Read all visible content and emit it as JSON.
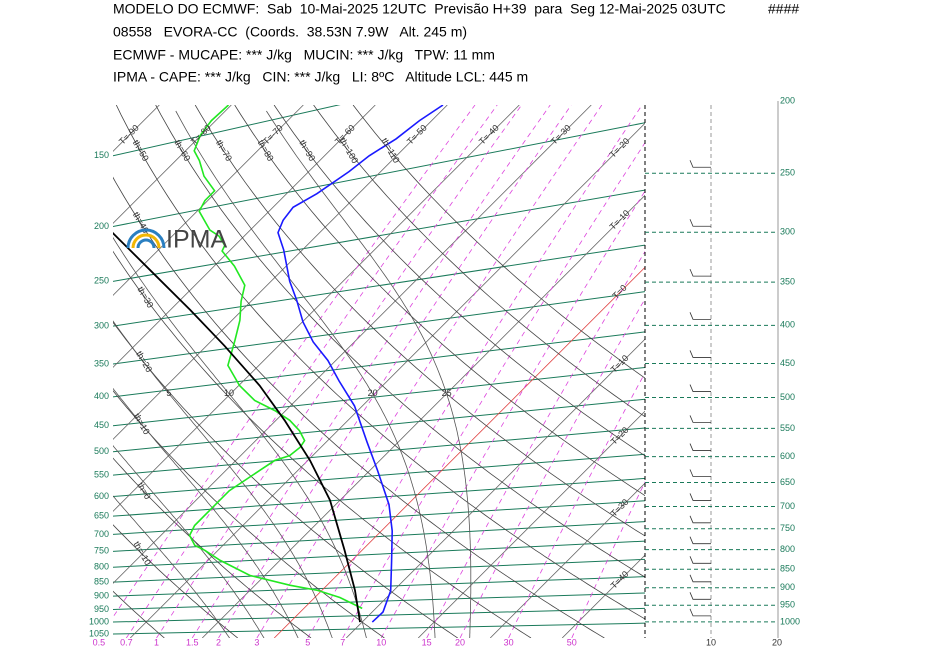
{
  "chart_data": {
    "type": "skew-t",
    "header": [
      "MODELO DO ECMWF:  Sab  10-Mai-2025 12UTC  Previsão H+39  para  Seg 12-Mai-2025 03UTC",
      "08558   EVORA-CC  (Coords.  38.53N 7.9W   Alt. 245 m)",
      "ECMWF - MUCAPE: *** J/kg   MUCIN: *** J/kg   TPW: 11 mm",
      "IPMA - CAPE: *** J/kg   CIN: *** J/kg   LI: 8ºC   Altitude LCL: 445 m"
    ],
    "header_mark": "####",
    "logo": "IPMA",
    "ylim": [
      1067,
      122
    ],
    "yticks": [
      150,
      200,
      250,
      300,
      350,
      400,
      450,
      500,
      550,
      600,
      650,
      700,
      750,
      800,
      850,
      900,
      950,
      1000,
      1050
    ],
    "y2lim": [
      1051,
      200
    ],
    "y2ticks": [
      200,
      250,
      300,
      350,
      400,
      450,
      500,
      550,
      600,
      650,
      700,
      750,
      800,
      850,
      900,
      950,
      1000
    ],
    "xlim": [
      -22.4,
      51.5
    ],
    "mixing_ratio_ticks": [
      0.5,
      0.7,
      1,
      1.5,
      2,
      3,
      5,
      7,
      10,
      15,
      20,
      30,
      50
    ],
    "isotherm_ticks": [
      {
        "value": -90,
        "label": "T=-90"
      },
      {
        "value": -80,
        "label": "T=-80"
      },
      {
        "value": -70,
        "label": "T=-70"
      },
      {
        "value": -60,
        "label": "T=-60"
      },
      {
        "value": -50,
        "label": "T=-50"
      },
      {
        "value": -40,
        "label": "T=-40"
      },
      {
        "value": -30,
        "label": "T=-30"
      },
      {
        "value": -20,
        "label": "T=-20"
      },
      {
        "value": -10,
        "label": "T=-10"
      },
      {
        "value": 0,
        "label": "T=0"
      },
      {
        "value": 10,
        "label": "T=10"
      },
      {
        "value": 20,
        "label": "T=20"
      },
      {
        "value": 30,
        "label": "T=30"
      },
      {
        "value": 40,
        "label": "T=40"
      }
    ],
    "dry_adiabat_ticks": [
      {
        "value": -20,
        "label": "th=-20"
      },
      {
        "value": -10,
        "label": "th=-10"
      },
      {
        "value": 0,
        "label": "th=0"
      },
      {
        "value": 10,
        "label": "th=10"
      },
      {
        "value": 20,
        "label": "th=20"
      },
      {
        "value": 30,
        "label": "th=30"
      },
      {
        "value": 40,
        "label": "th=40"
      },
      {
        "value": 50,
        "label": "th=50"
      },
      {
        "value": 60,
        "label": "th=60"
      },
      {
        "value": 70,
        "label": "th=70"
      },
      {
        "value": 80,
        "label": "th=80"
      },
      {
        "value": 90,
        "label": "th=90"
      },
      {
        "value": 100,
        "label": "th=100"
      },
      {
        "value": 110,
        "label": "th=110"
      }
    ],
    "moist_adiabat_ticks": [
      25,
      20,
      10,
      5,
      0,
      -5,
      -10
    ],
    "wind_xlim": [
      0,
      20
    ],
    "wind_xticks": [
      10,
      20
    ],
    "series": [
      {
        "color": "#1a1aff",
        "pressure": [
          1000,
          960,
          880,
          780,
          690,
          620,
          540,
          480,
          415,
          375,
          345,
          320,
          295,
          270,
          250,
          220,
          205,
          195,
          185,
          175,
          160,
          150,
          140,
          130,
          122
        ],
        "values": [
          11.4,
          11.5,
          9.6,
          5.6,
          1.5,
          -2.6,
          -8.9,
          -14.4,
          -21.1,
          -26.7,
          -31.1,
          -35.7,
          -39.9,
          -43.8,
          -47.4,
          -52.6,
          -55.8,
          -56.8,
          -57.2,
          -55.8,
          -54.4,
          -53.8,
          -52.4,
          -51.7,
          -50.6
        ]
      },
      {
        "color": "#22e822",
        "pressure": [
          946,
          905,
          879,
          861,
          827,
          778,
          747,
          732,
          703,
          675,
          635,
          586,
          540,
          518,
          508,
          491,
          478,
          459,
          440,
          423,
          406,
          382,
          352,
          318,
          293,
          271,
          254,
          235,
          221,
          216,
          208,
          203,
          188,
          180,
          173,
          163,
          153,
          147,
          138,
          130,
          122
        ],
        "values": [
          8.1,
          3.5,
          -0.6,
          -5.1,
          -12.1,
          -18.3,
          -21.8,
          -23.9,
          -26.0,
          -26.7,
          -26.7,
          -26.7,
          -25.3,
          -24.6,
          -23.2,
          -22.9,
          -23.2,
          -25.3,
          -28.1,
          -31.5,
          -35.7,
          -39.9,
          -44.3,
          -46.8,
          -48.9,
          -51.4,
          -53.1,
          -57.2,
          -61.0,
          -61.4,
          -63.5,
          -65.6,
          -69.7,
          -70.4,
          -70.4,
          -73.9,
          -76.7,
          -78.8,
          -80.1,
          -80.6,
          -80.4
        ]
      },
      {
        "color": "#000000",
        "pressure": [
          1000,
          879,
          747,
          609,
          518,
          440,
          382,
          325,
          281,
          239,
          205
        ],
        "values": [
          9.7,
          4.6,
          -2.4,
          -11.4,
          -19.7,
          -28.8,
          -37.1,
          -47.5,
          -57.2,
          -68.3,
          -78.8
        ]
      }
    ]
  }
}
